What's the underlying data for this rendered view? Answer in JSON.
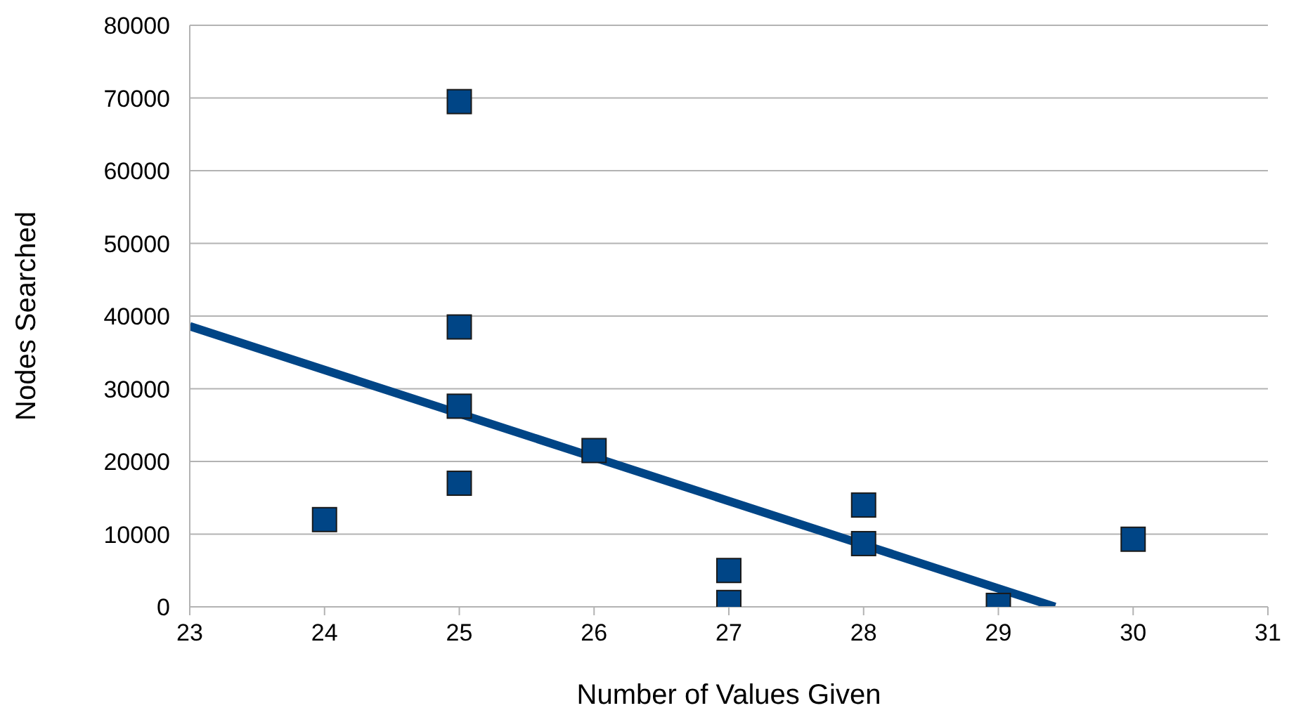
{
  "chart_data": {
    "type": "scatter",
    "xlabel": "Number of Values Given",
    "ylabel": "Nodes Searched",
    "x": [
      24,
      25,
      25,
      25,
      25,
      26,
      27,
      27,
      28,
      28,
      29,
      30
    ],
    "series": [
      {
        "type": "scatter",
        "color": "#004586",
        "values": [
          12000,
          69500,
          38500,
          27600,
          17000,
          21500,
          5000,
          600,
          14000,
          8700,
          200,
          9300
        ]
      },
      {
        "type": "line",
        "color": "#004586",
        "x": [
          23,
          29.42
        ],
        "values": [
          38600,
          0
        ],
        "marker": "none"
      }
    ],
    "xlim": [
      23,
      31
    ],
    "xticks": [
      23,
      24,
      25,
      26,
      27,
      28,
      29,
      30,
      31
    ],
    "ylim": [
      0,
      80000
    ],
    "yticks": [
      0,
      10000,
      20000,
      30000,
      40000,
      50000,
      60000,
      70000,
      80000
    ],
    "grid": "y",
    "legend": false,
    "marker": "square"
  }
}
